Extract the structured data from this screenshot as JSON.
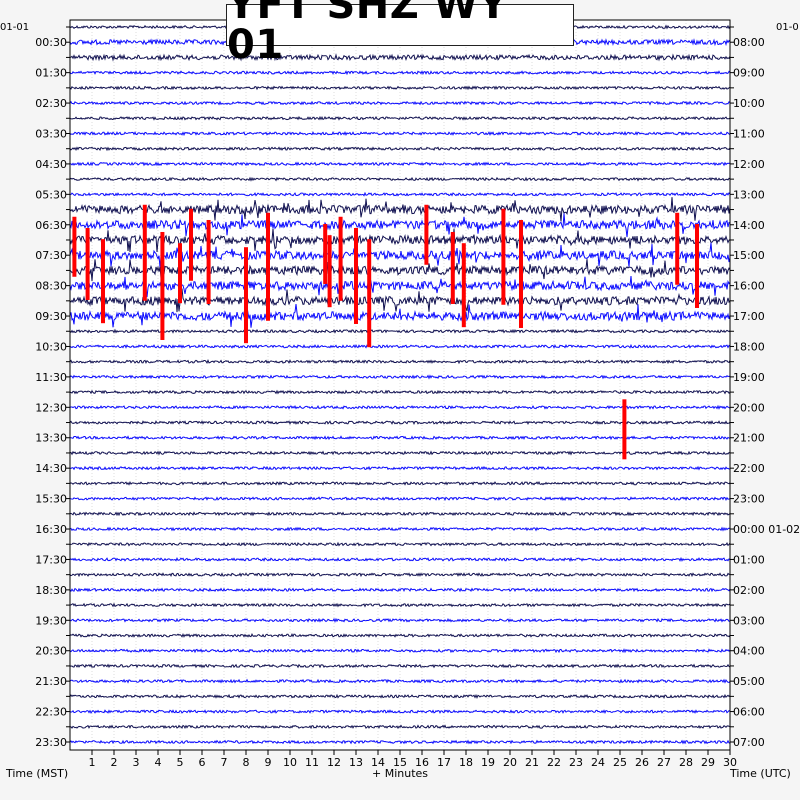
{
  "title": "YFT SHZ WY 01",
  "left_corner_date": "01-01",
  "right_corner_date": "01-0",
  "xlabel": "+ Minutes",
  "left_axis_title": "Time (MST)",
  "right_axis_title": "Time (UTC)",
  "colors": {
    "background": "#f5f5f5",
    "plot_bg": "#ffffff",
    "trace_dark": "#101050",
    "trace_blue": "#0a0aff",
    "clip_red": "#ff0000",
    "grid": "#c8c8c8"
  },
  "chart_data": {
    "type": "helicorder",
    "xlim": [
      0,
      30
    ],
    "x_ticks": [
      "1",
      "2",
      "3",
      "4",
      "5",
      "6",
      "7",
      "8",
      "9",
      "10",
      "11",
      "12",
      "13",
      "14",
      "15",
      "16",
      "17",
      "18",
      "19",
      "20",
      "21",
      "22",
      "23",
      "24",
      "25",
      "26",
      "27",
      "28",
      "29",
      "30"
    ],
    "lines_per_hour": 2,
    "minutes_per_line": 30,
    "left_labels": [
      "00:30",
      "01:30",
      "02:30",
      "03:30",
      "04:30",
      "05:30",
      "06:30",
      "07:30",
      "08:30",
      "09:30",
      "10:30",
      "11:30",
      "12:30",
      "13:30",
      "14:30",
      "15:30",
      "16:30",
      "17:30",
      "18:30",
      "19:30",
      "20:30",
      "21:30",
      "22:30",
      "23:30"
    ],
    "right_labels": [
      "08:00",
      "09:00",
      "10:00",
      "11:00",
      "12:00",
      "13:00",
      "14:00",
      "15:00",
      "16:00",
      "17:00",
      "18:00",
      "19:00",
      "20:00",
      "21:00",
      "22:00",
      "23:00",
      "00:00 01-02",
      "01:00",
      "02:00",
      "03:00",
      "04:00",
      "05:00",
      "06:00",
      "07:00"
    ],
    "grid": true,
    "trace_colors": [
      "dark",
      "blue"
    ],
    "clipped_events_minutes": [
      0.2,
      0.8,
      1.5,
      3.4,
      4.2,
      5.0,
      5.5,
      6.3,
      8.0,
      9.0,
      11.6,
      11.8,
      12.3,
      13.0,
      13.6,
      16.2,
      17.4,
      17.9,
      19.7,
      20.5,
      25.2,
      27.6,
      28.5
    ]
  }
}
